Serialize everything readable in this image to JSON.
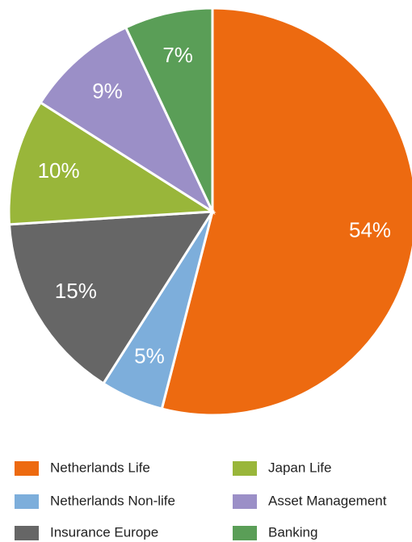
{
  "chart_data": {
    "type": "pie",
    "categories": [
      "Netherlands Life",
      "Netherlands Non-life",
      "Insurance Europe",
      "Japan Life",
      "Asset Management",
      "Banking"
    ],
    "values": [
      54,
      5,
      15,
      10,
      9,
      7
    ],
    "value_labels": [
      "54%",
      "5%",
      "15%",
      "10%",
      "9%",
      "7%"
    ],
    "colors": [
      "#ED6A10",
      "#7DAEDB",
      "#666666",
      "#99B63A",
      "#9B8FC7",
      "#5A9E57"
    ]
  }
}
